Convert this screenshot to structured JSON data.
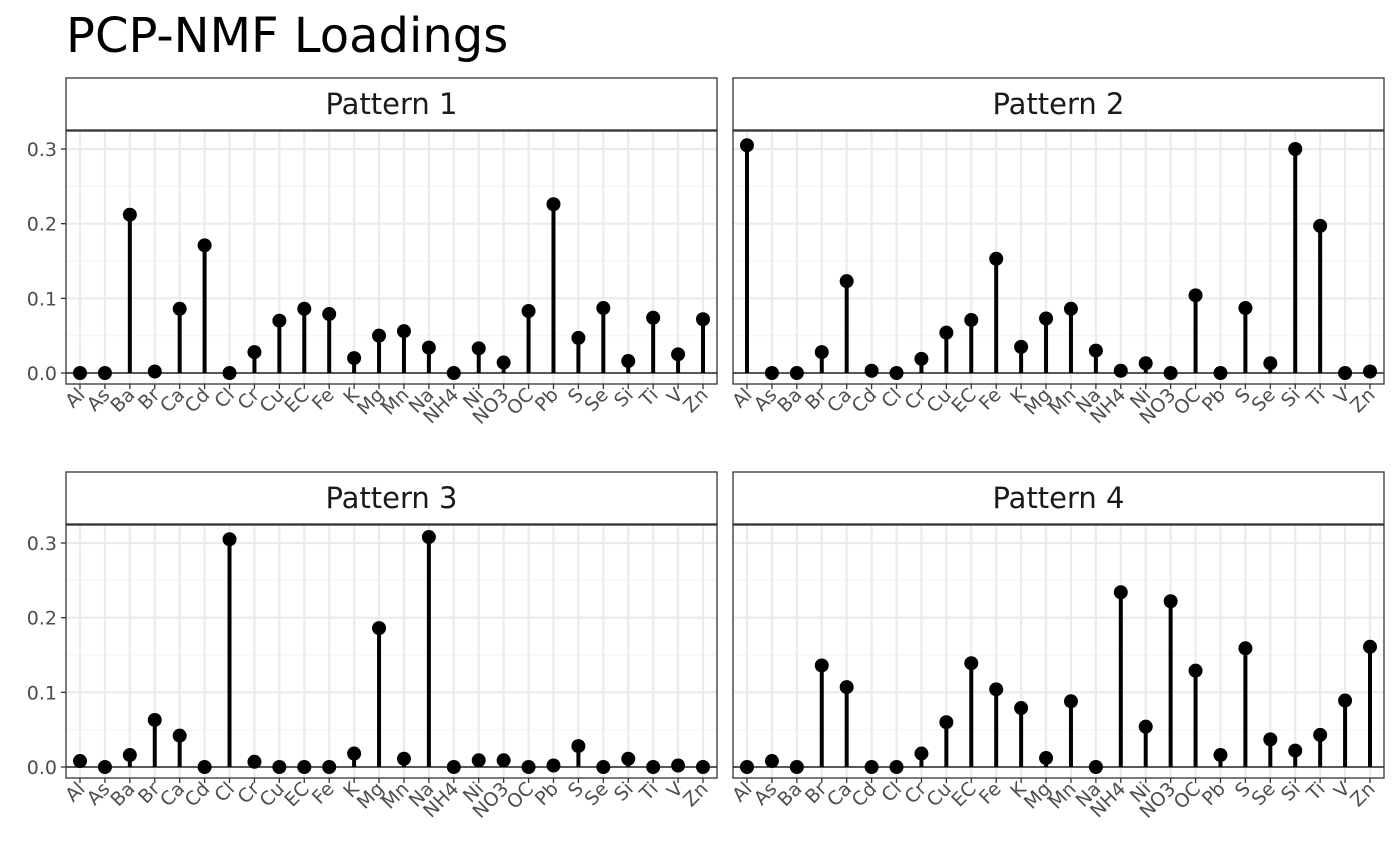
{
  "chart_data": {
    "type": "lollipop",
    "title": "PCP-NMF Loadings",
    "xlabel": "",
    "ylabel": "",
    "ylim": [
      0,
      0.31
    ],
    "y_ticks": [
      0.0,
      0.1,
      0.2,
      0.3
    ],
    "y_tick_labels": [
      "0.0",
      "0.1",
      "0.2",
      "0.3"
    ],
    "grid": true,
    "legend": "none",
    "categories": [
      "Al",
      "As",
      "Ba",
      "Br",
      "Ca",
      "Cd",
      "Cl",
      "Cr",
      "Cu",
      "EC",
      "Fe",
      "K",
      "Mg",
      "Mn",
      "Na",
      "NH4",
      "Ni",
      "NO3",
      "OC",
      "Pb",
      "S",
      "Se",
      "Si",
      "Ti",
      "V",
      "Zn"
    ],
    "panels": [
      {
        "name": "Pattern 1",
        "values": [
          0.0,
          0.0,
          0.212,
          0.002,
          0.086,
          0.171,
          0.0,
          0.028,
          0.07,
          0.086,
          0.079,
          0.02,
          0.05,
          0.056,
          0.034,
          0.0,
          0.033,
          0.014,
          0.083,
          0.226,
          0.047,
          0.087,
          0.016,
          0.074,
          0.025,
          0.072
        ]
      },
      {
        "name": "Pattern 2",
        "values": [
          0.305,
          0.0,
          0.0,
          0.028,
          0.123,
          0.003,
          0.0,
          0.019,
          0.054,
          0.071,
          0.153,
          0.035,
          0.073,
          0.086,
          0.03,
          0.003,
          0.013,
          0.0,
          0.104,
          0.0,
          0.087,
          0.013,
          0.3,
          0.197,
          0.0,
          0.002
        ]
      },
      {
        "name": "Pattern 3",
        "values": [
          0.008,
          0.0,
          0.016,
          0.063,
          0.042,
          0.0,
          0.305,
          0.007,
          0.0,
          0.0,
          0.0,
          0.018,
          0.186,
          0.011,
          0.308,
          0.0,
          0.009,
          0.009,
          0.0,
          0.002,
          0.028,
          0.0,
          0.011,
          0.0,
          0.002,
          0.0
        ]
      },
      {
        "name": "Pattern 4",
        "values": [
          0.0,
          0.008,
          0.0,
          0.136,
          0.107,
          0.0,
          0.0,
          0.018,
          0.06,
          0.139,
          0.104,
          0.079,
          0.012,
          0.088,
          0.0,
          0.234,
          0.054,
          0.222,
          0.129,
          0.016,
          0.159,
          0.037,
          0.022,
          0.043,
          0.089,
          0.161
        ]
      }
    ]
  },
  "colors": {
    "point": "#000000",
    "stem": "#000000",
    "grid_major": "#ebebeb",
    "grid_minor": "#f5f5f5",
    "panel_border": "#333333",
    "strip_fill": "#ffffff",
    "tick_text": "#4d4d4d"
  }
}
